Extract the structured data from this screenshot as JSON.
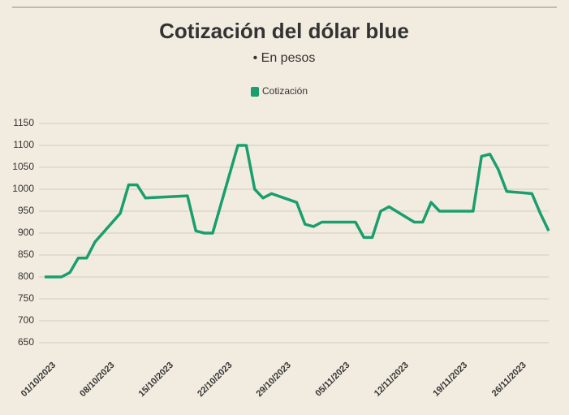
{
  "chart_data": {
    "type": "line",
    "title": "Cotización del dólar blue",
    "subtitle": "• En pesos",
    "x": [
      "01/10/2023",
      "03/10/2023",
      "04/10/2023",
      "05/10/2023",
      "06/10/2023",
      "07/10/2023",
      "10/10/2023",
      "11/10/2023",
      "12/10/2023",
      "13/10/2023",
      "18/10/2023",
      "19/10/2023",
      "20/10/2023",
      "21/10/2023",
      "24/10/2023",
      "25/10/2023",
      "26/10/2023",
      "27/10/2023",
      "28/10/2023",
      "31/10/2023",
      "01/11/2023",
      "02/11/2023",
      "03/11/2023",
      "07/11/2023",
      "08/11/2023",
      "09/11/2023",
      "10/11/2023",
      "11/11/2023",
      "14/11/2023",
      "15/11/2023",
      "16/11/2023",
      "17/11/2023",
      "21/11/2023",
      "22/11/2023",
      "23/11/2023",
      "24/11/2023",
      "25/11/2023",
      "28/11/2023",
      "29/11/2023",
      "30/11/2023"
    ],
    "series": [
      {
        "name": "Cotización",
        "color": "#1a9e6e",
        "values": [
          800,
          800,
          810,
          843,
          843,
          880,
          945,
          1010,
          1010,
          980,
          985,
          905,
          900,
          900,
          1100,
          1100,
          1000,
          980,
          990,
          970,
          920,
          915,
          925,
          925,
          890,
          890,
          950,
          960,
          925,
          925,
          970,
          950,
          950,
          1075,
          1080,
          1045,
          995,
          990,
          945,
          905
        ]
      }
    ],
    "xlim": [
      "01/10/2023",
      "30/11/2023"
    ],
    "xticks": [
      "01/10/2023",
      "08/10/2023",
      "15/10/2023",
      "22/10/2023",
      "29/10/2023",
      "05/11/2023",
      "12/11/2023",
      "19/11/2023",
      "26/11/2023"
    ],
    "ylim": [
      650,
      1150
    ],
    "yticks": [
      650,
      700,
      750,
      800,
      850,
      900,
      950,
      1000,
      1050,
      1100,
      1150
    ],
    "grid": true
  }
}
